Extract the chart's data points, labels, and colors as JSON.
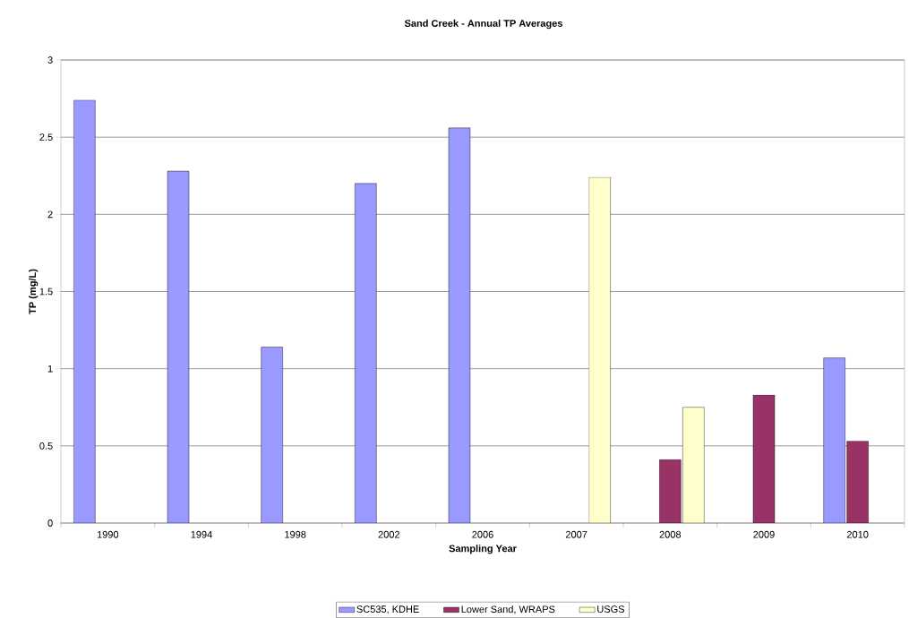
{
  "chart_data": {
    "type": "bar",
    "title": "Sand Creek - Annual TP Averages",
    "xlabel": "Sampling Year",
    "ylabel": "TP (mg/L)",
    "categories": [
      "1990",
      "1994",
      "1998",
      "2002",
      "2006",
      "2007",
      "2008",
      "2009",
      "2010"
    ],
    "series": [
      {
        "name": "SC535, KDHE",
        "color": "#9999ff",
        "values": [
          2.74,
          2.28,
          1.14,
          2.2,
          2.56,
          null,
          null,
          null,
          1.07
        ]
      },
      {
        "name": "Lower Sand, WRAPS",
        "color": "#993366",
        "values": [
          null,
          null,
          null,
          null,
          null,
          null,
          0.41,
          0.83,
          0.53
        ]
      },
      {
        "name": "USGS",
        "color": "#ffffcc",
        "values": [
          null,
          null,
          null,
          null,
          null,
          2.24,
          0.75,
          null,
          null
        ]
      }
    ],
    "ylim": [
      0,
      3
    ],
    "yticks": [
      0,
      0.5,
      1,
      1.5,
      2,
      2.5,
      3
    ],
    "grid": "y",
    "legend": "bottom"
  }
}
